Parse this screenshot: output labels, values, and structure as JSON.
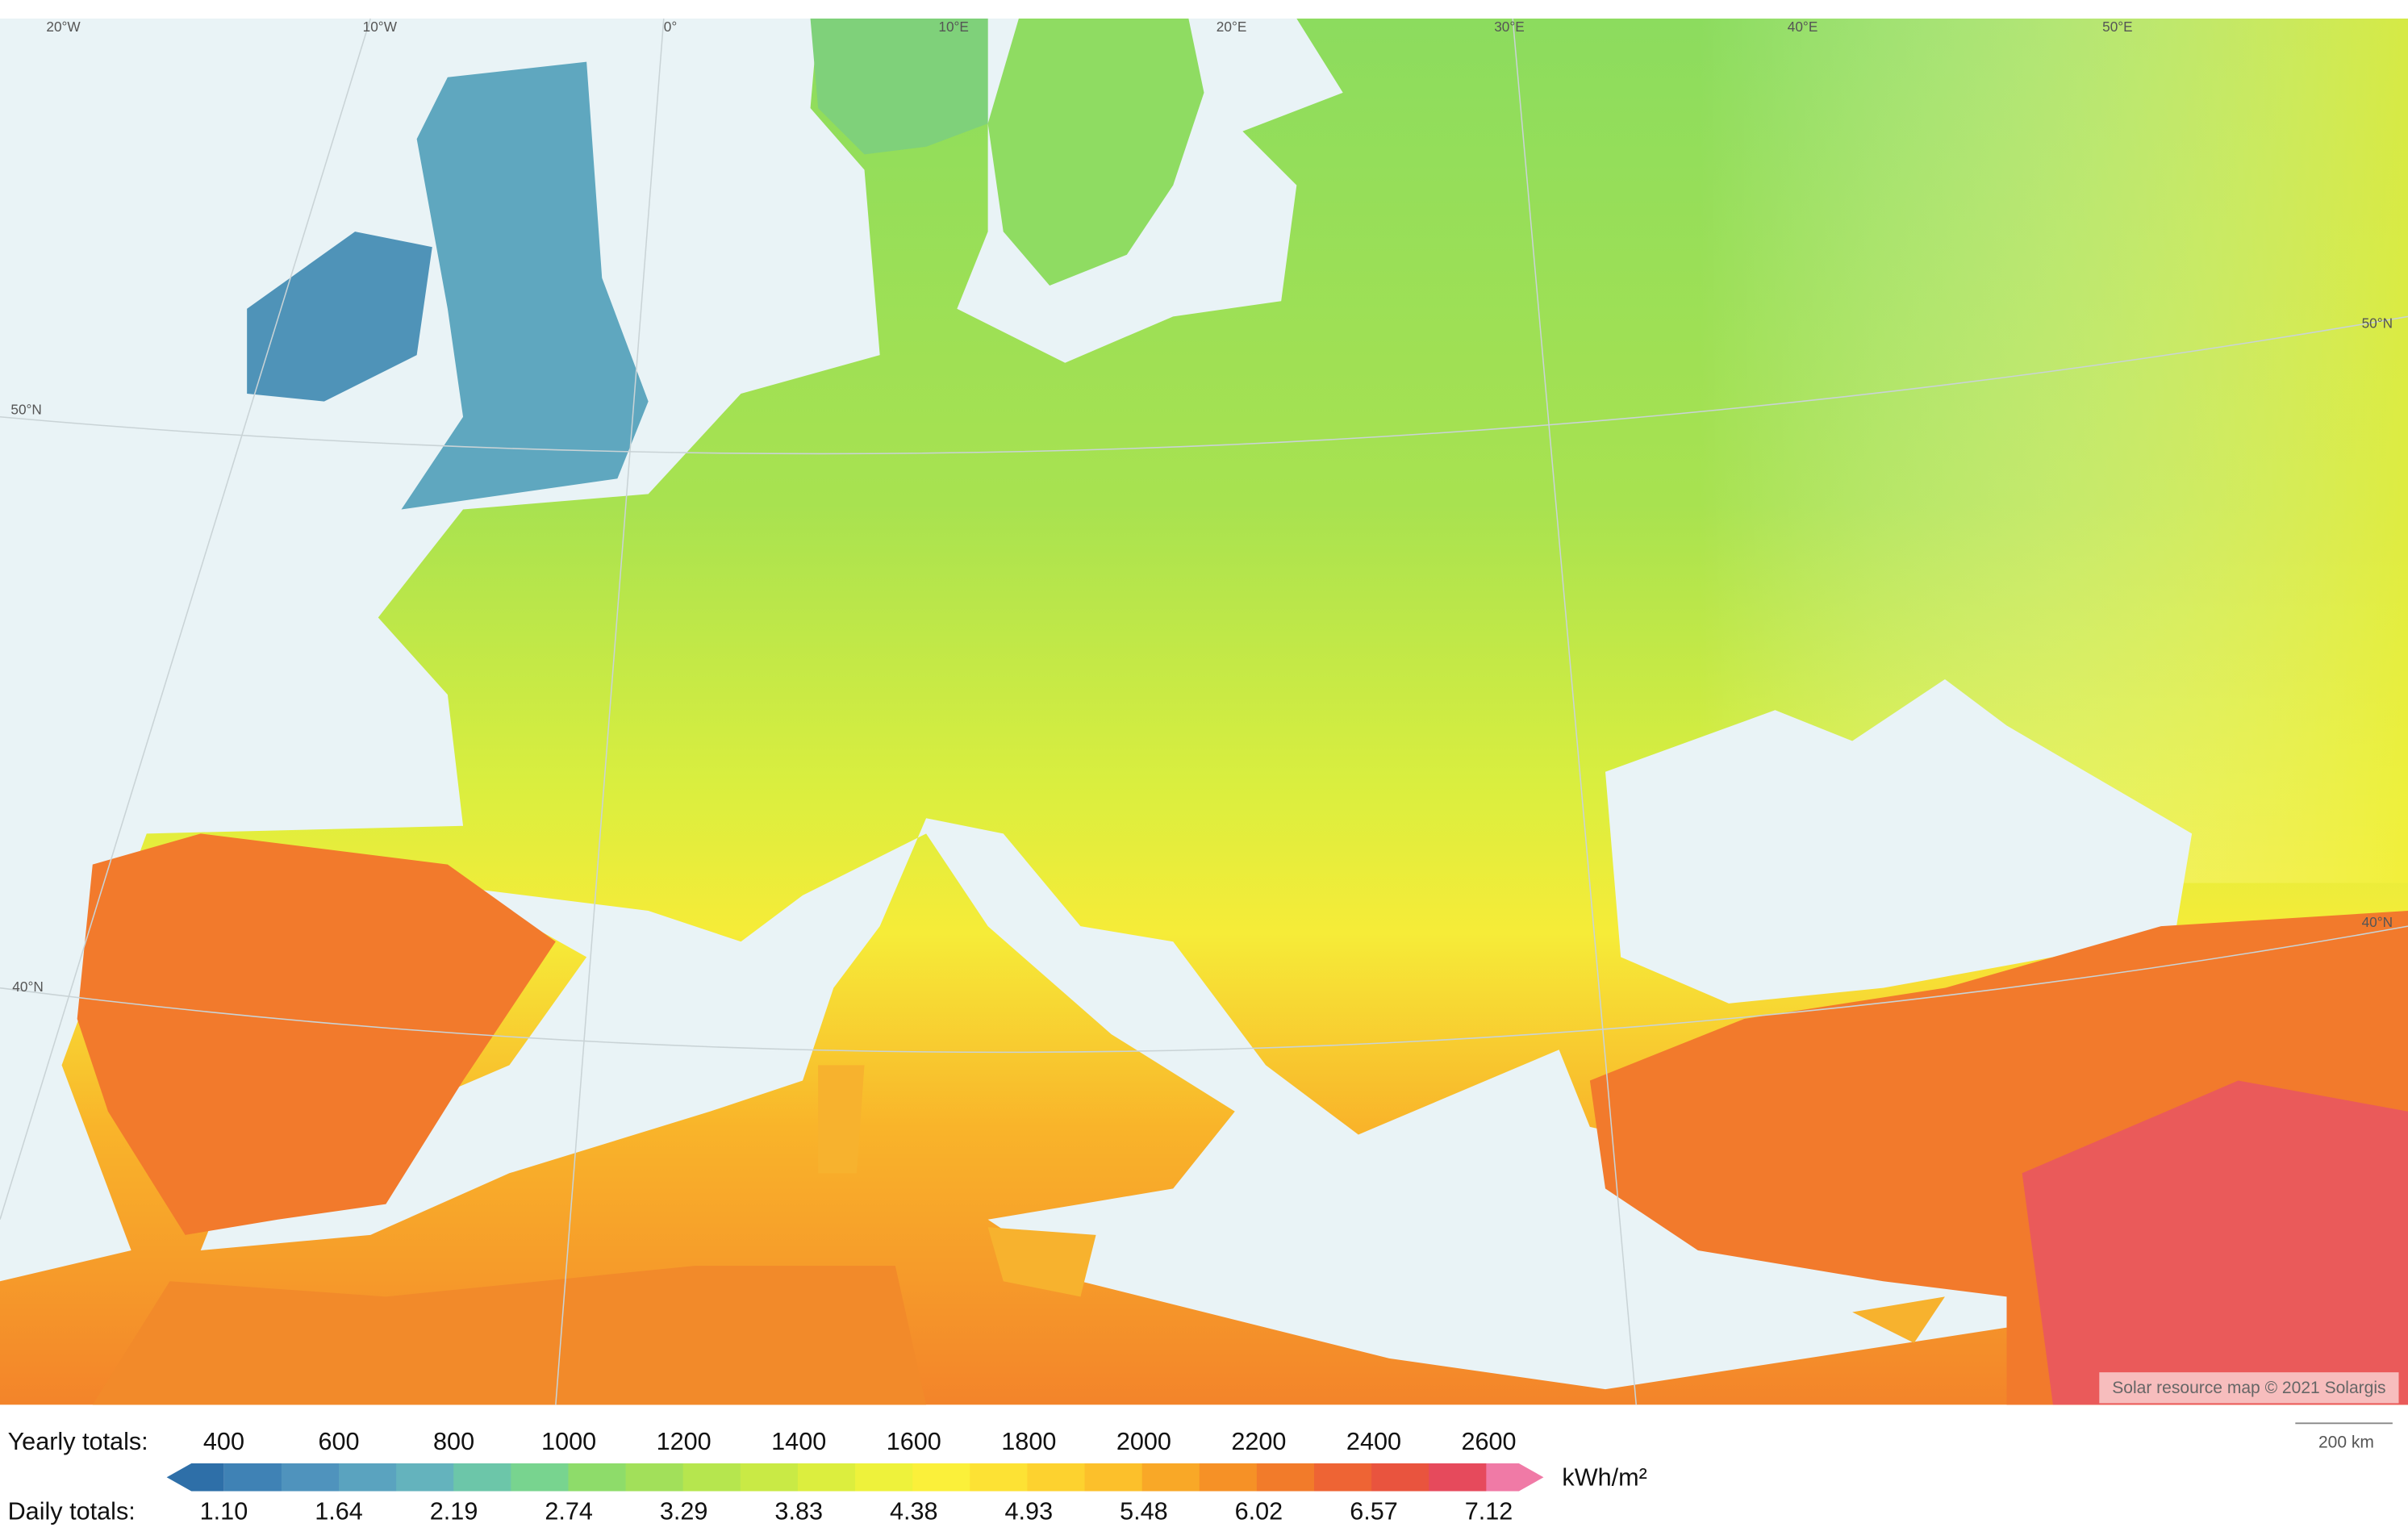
{
  "map": {
    "longitude_labels": [
      "20°W",
      "10°W",
      "0°",
      "10°E",
      "20°E",
      "30°E",
      "40°E",
      "50°E"
    ],
    "latitude_labels_left": [
      "50°N",
      "40°N"
    ],
    "latitude_labels_right": [
      "50°N",
      "40°N"
    ],
    "attribution": "Solar resource map © 2021 Solargis",
    "scale_bar": "200 km"
  },
  "legend": {
    "yearly_label": "Yearly totals:",
    "yearly_values": [
      400,
      600,
      800,
      1000,
      1200,
      1400,
      1600,
      1800,
      2000,
      2200,
      2400,
      2600
    ],
    "daily_label": "Daily totals:",
    "daily_values": [
      "1.10",
      "1.64",
      "2.19",
      "2.74",
      "3.29",
      "3.83",
      "4.38",
      "4.93",
      "5.48",
      "6.02",
      "6.57",
      "7.12"
    ],
    "unit": "kWh/m²",
    "colors": [
      "#2e6fa8",
      "#3f82b5",
      "#4f93bd",
      "#5aa3bf",
      "#64b3bd",
      "#6cc6a9",
      "#78d48f",
      "#8edc6a",
      "#a2e05a",
      "#b6e64e",
      "#c9ea45",
      "#dcee3e",
      "#eef23b",
      "#fbf03a",
      "#fde234",
      "#fdd22f",
      "#fcc02b",
      "#f9a827",
      "#f69126",
      "#f27b2a",
      "#ee6434",
      "#e9543e",
      "#e64a5c",
      "#f07aa6"
    ]
  }
}
